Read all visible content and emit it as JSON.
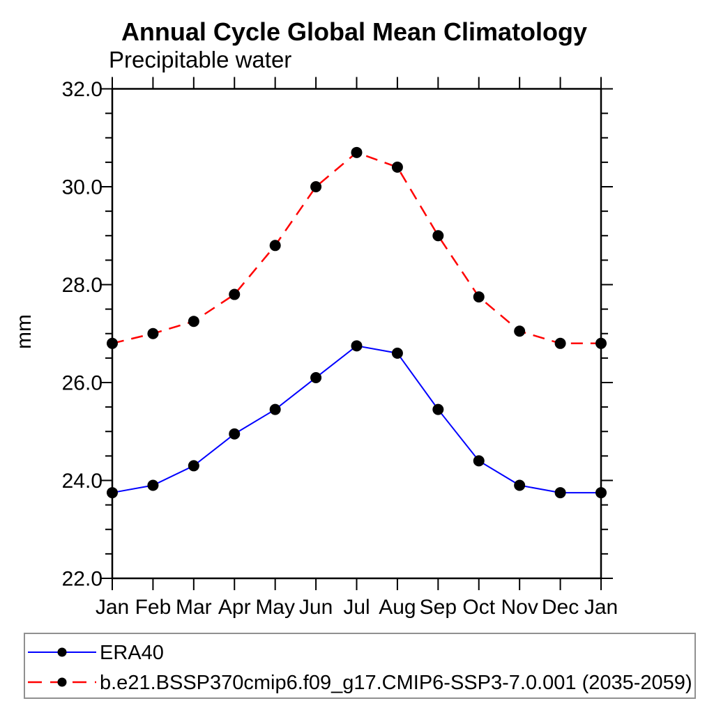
{
  "chart_data": {
    "type": "line",
    "title": "Annual Cycle Global Mean Climatology",
    "subtitle": "Precipitable water",
    "ylabel": "mm",
    "xlabel": "",
    "categories": [
      "Jan",
      "Feb",
      "Mar",
      "Apr",
      "May",
      "Jun",
      "Jul",
      "Aug",
      "Sep",
      "Oct",
      "Nov",
      "Dec",
      "Jan"
    ],
    "ylim": [
      22.0,
      32.0
    ],
    "ytick_major_values": [
      22,
      24,
      26,
      28,
      30,
      32
    ],
    "ytick_major_labels": [
      "22.0",
      "24.0",
      "26.0",
      "28.0",
      "30.0",
      "32.0"
    ],
    "ytick_minor_step": 0.5,
    "grid": false,
    "marker": {
      "shape": "filled-circle",
      "color": "#000000"
    },
    "legend_position": "bottom-left-boxed",
    "series": [
      {
        "name": "ERA40",
        "color": "#0000ff",
        "line_style": "solid",
        "values": [
          23.75,
          23.9,
          24.3,
          24.95,
          25.45,
          26.1,
          26.75,
          26.6,
          25.45,
          24.4,
          23.9,
          23.75,
          23.75
        ]
      },
      {
        "name": "b.e21.BSSP370cmip6.f09_g17.CMIP6-SSP3-7.0.001 (2035-2059)",
        "color": "#ff0000",
        "line_style": "dashed",
        "values": [
          26.8,
          27.0,
          27.25,
          27.8,
          28.8,
          30.0,
          30.7,
          30.4,
          29.0,
          27.75,
          27.05,
          26.8,
          26.8
        ]
      }
    ]
  }
}
